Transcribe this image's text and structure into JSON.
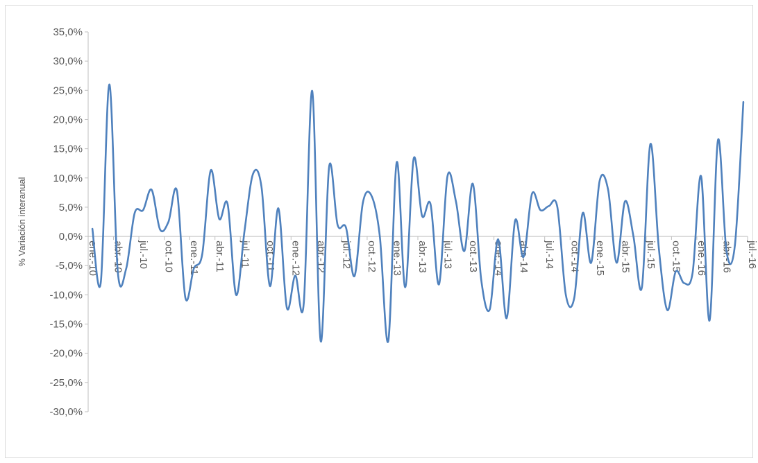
{
  "chart_data": {
    "type": "line",
    "title": "",
    "xlabel": "",
    "ylabel": "% Variación interanual",
    "ylim": [
      -30,
      35
    ],
    "ytick_labels": [
      "35,0%",
      "30,0%",
      "25,0%",
      "20,0%",
      "15,0%",
      "10,0%",
      "5,0%",
      "0,0%",
      "-5,0%",
      "-10,0%",
      "-15,0%",
      "-20,0%",
      "-25,0%",
      "-30,0%"
    ],
    "x_tick_labels": [
      "ene.-10",
      "abr.-10",
      "jul.-10",
      "oct.-10",
      "ene.-11",
      "abr.-11",
      "jul.-11",
      "oct.-11",
      "ene.-12",
      "abr.-12",
      "jul.-12",
      "oct.-12",
      "ene.-13",
      "abr.-13",
      "jul.-13",
      "oct.-13",
      "ene.-14",
      "abr.-14",
      "jul.-14",
      "oct.-14",
      "ene.-15",
      "abr.-15",
      "jul.-15",
      "oct.-15",
      "ene.-16",
      "abr.-16",
      "jul.-16"
    ],
    "grid": false,
    "line_color": "#4f81bd",
    "series": [
      {
        "name": "",
        "values": [
          1.3,
          -7.8,
          26.0,
          -6.0,
          -5.5,
          4.0,
          4.5,
          8.0,
          1.2,
          2.5,
          7.8,
          -10.5,
          -5.5,
          -3.0,
          11.3,
          3.0,
          5.5,
          -10.0,
          1.0,
          10.7,
          8.5,
          -8.5,
          4.8,
          -12.2,
          -6.7,
          -11.5,
          24.9,
          -17.9,
          11.9,
          2.0,
          1.5,
          -6.8,
          5.8,
          7.0,
          0.0,
          -17.9,
          12.7,
          -8.7,
          13.3,
          3.5,
          5.5,
          -8.2,
          10.3,
          6.0,
          -2.5,
          9.0,
          -7.5,
          -12.5,
          -0.5,
          -14.0,
          2.7,
          -3.5,
          7.3,
          4.5,
          5.2,
          5.0,
          -10.0,
          -10.5,
          4.0,
          -4.5,
          9.5,
          8.0,
          -4.5,
          6.0,
          0.0,
          -8.7,
          15.8,
          -2.0,
          -12.6,
          -6.0,
          -8.0,
          -6.2,
          10.3,
          -14.4,
          16.5,
          -2.5,
          -1.5,
          23.0
        ]
      }
    ]
  }
}
